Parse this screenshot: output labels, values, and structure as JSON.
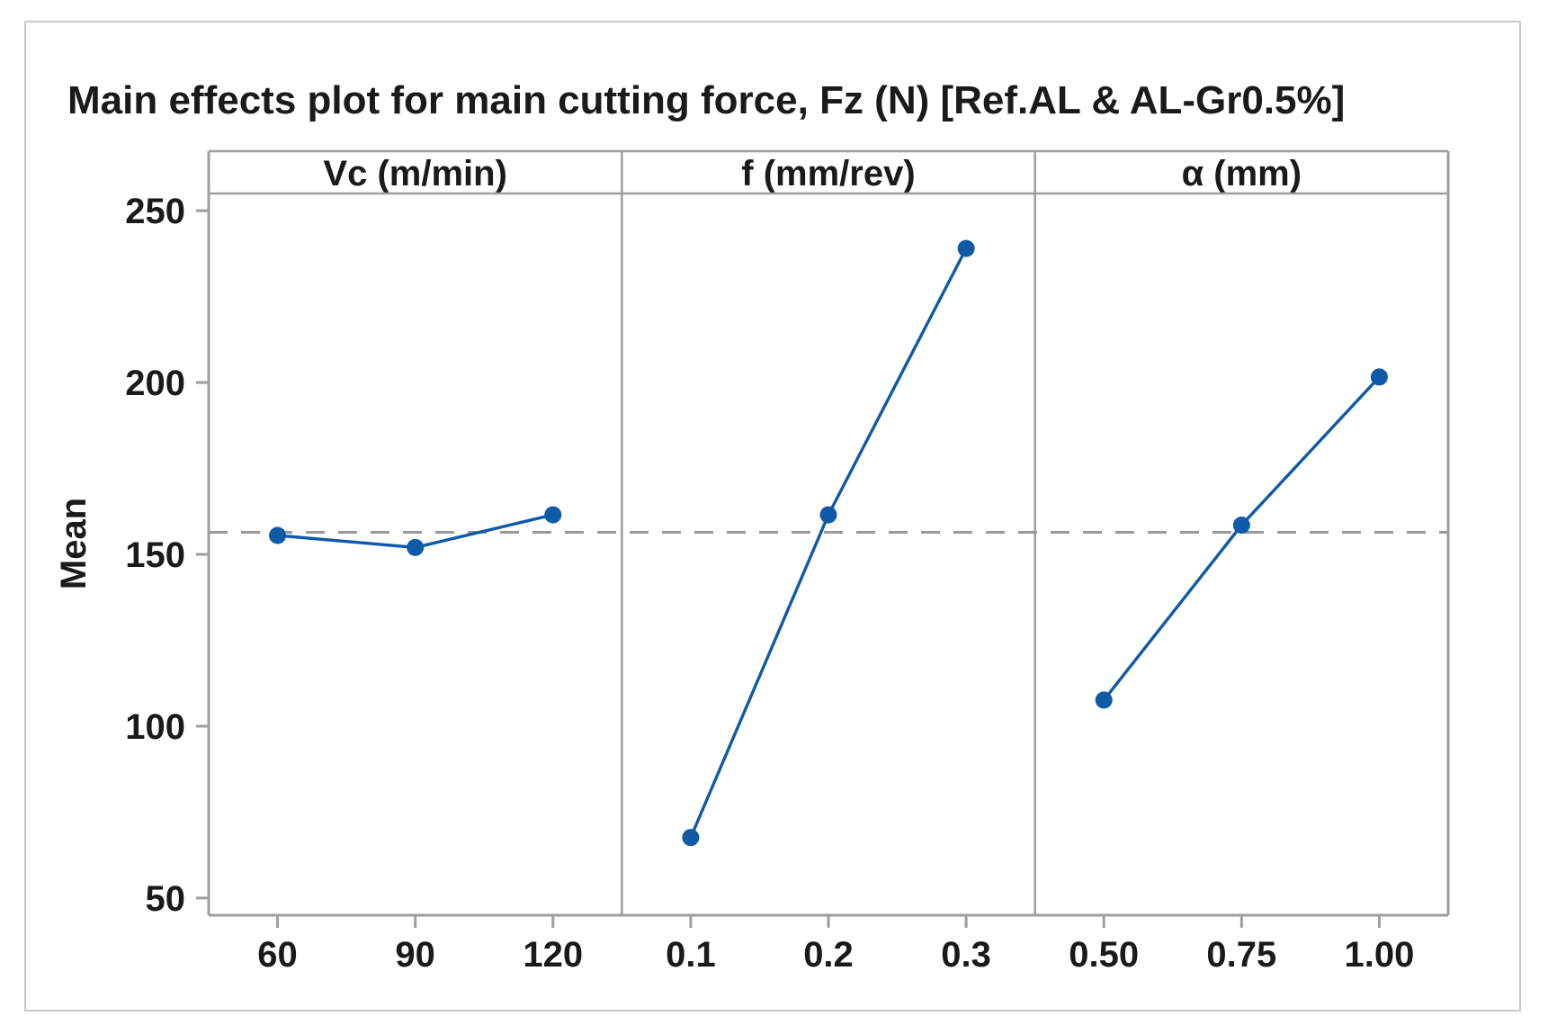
{
  "chart_data": {
    "type": "line",
    "subtype": "main-effects-plot",
    "title": "Main effects plot for main cutting force, Fz (N) [Ref.AL & AL-Gr0.5%]",
    "ylabel": "Mean",
    "ylim": [
      45,
      255
    ],
    "yticks": [
      50,
      100,
      150,
      200,
      250
    ],
    "grand_mean": 156.4,
    "grid": false,
    "legend_position": "none",
    "panels": [
      {
        "label": "Vc (m/min)",
        "categories": [
          "60",
          "90",
          "120"
        ],
        "values": [
          155.5,
          152.0,
          161.5
        ]
      },
      {
        "label": "f (mm/rev)",
        "categories": [
          "0.1",
          "0.2",
          "0.3"
        ],
        "values": [
          67.6,
          161.5,
          239.0
        ]
      },
      {
        "label": "α (mm)",
        "categories": [
          "0.50",
          "0.75",
          "1.00"
        ],
        "values": [
          107.6,
          158.5,
          201.6
        ]
      }
    ],
    "colors": {
      "series": "#0f5aa7",
      "marker": "#0f5aa7",
      "mean_line": "#999999",
      "axis": "#9e9e9e",
      "text": "#1a1a1a",
      "frame": "#c9c9c9"
    }
  }
}
